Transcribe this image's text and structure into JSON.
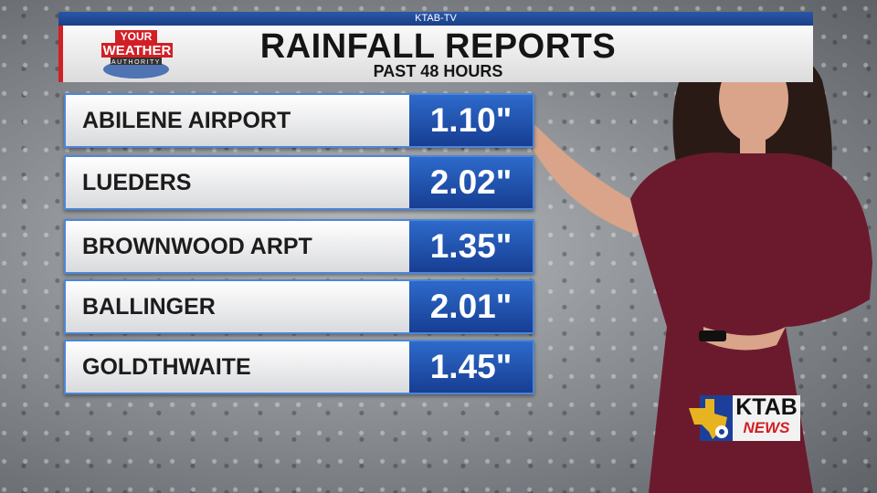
{
  "header": {
    "station": "KTAB-TV",
    "title": "RAINFALL REPORTS",
    "subtitle": "PAST 48 HOURS",
    "logo_text": [
      "YOUR",
      "WEATHER",
      "AUTHORITY"
    ]
  },
  "reports": [
    {
      "location": "ABILENE AIRPORT",
      "rainfall": "1.10\""
    },
    {
      "location": "LUEDERS",
      "rainfall": "2.02\""
    },
    {
      "location": "BROWNWOOD ARPT",
      "rainfall": "1.35\""
    },
    {
      "location": "BALLINGER",
      "rainfall": "2.01\""
    },
    {
      "location": "GOLDTHWAITE",
      "rainfall": "1.45\""
    }
  ],
  "bug": {
    "call": "KTAB",
    "news": "NEWS"
  },
  "colors": {
    "accent_blue": "#1b3f86",
    "accent_red": "#d21f26",
    "dress": "#6b1a2e"
  }
}
